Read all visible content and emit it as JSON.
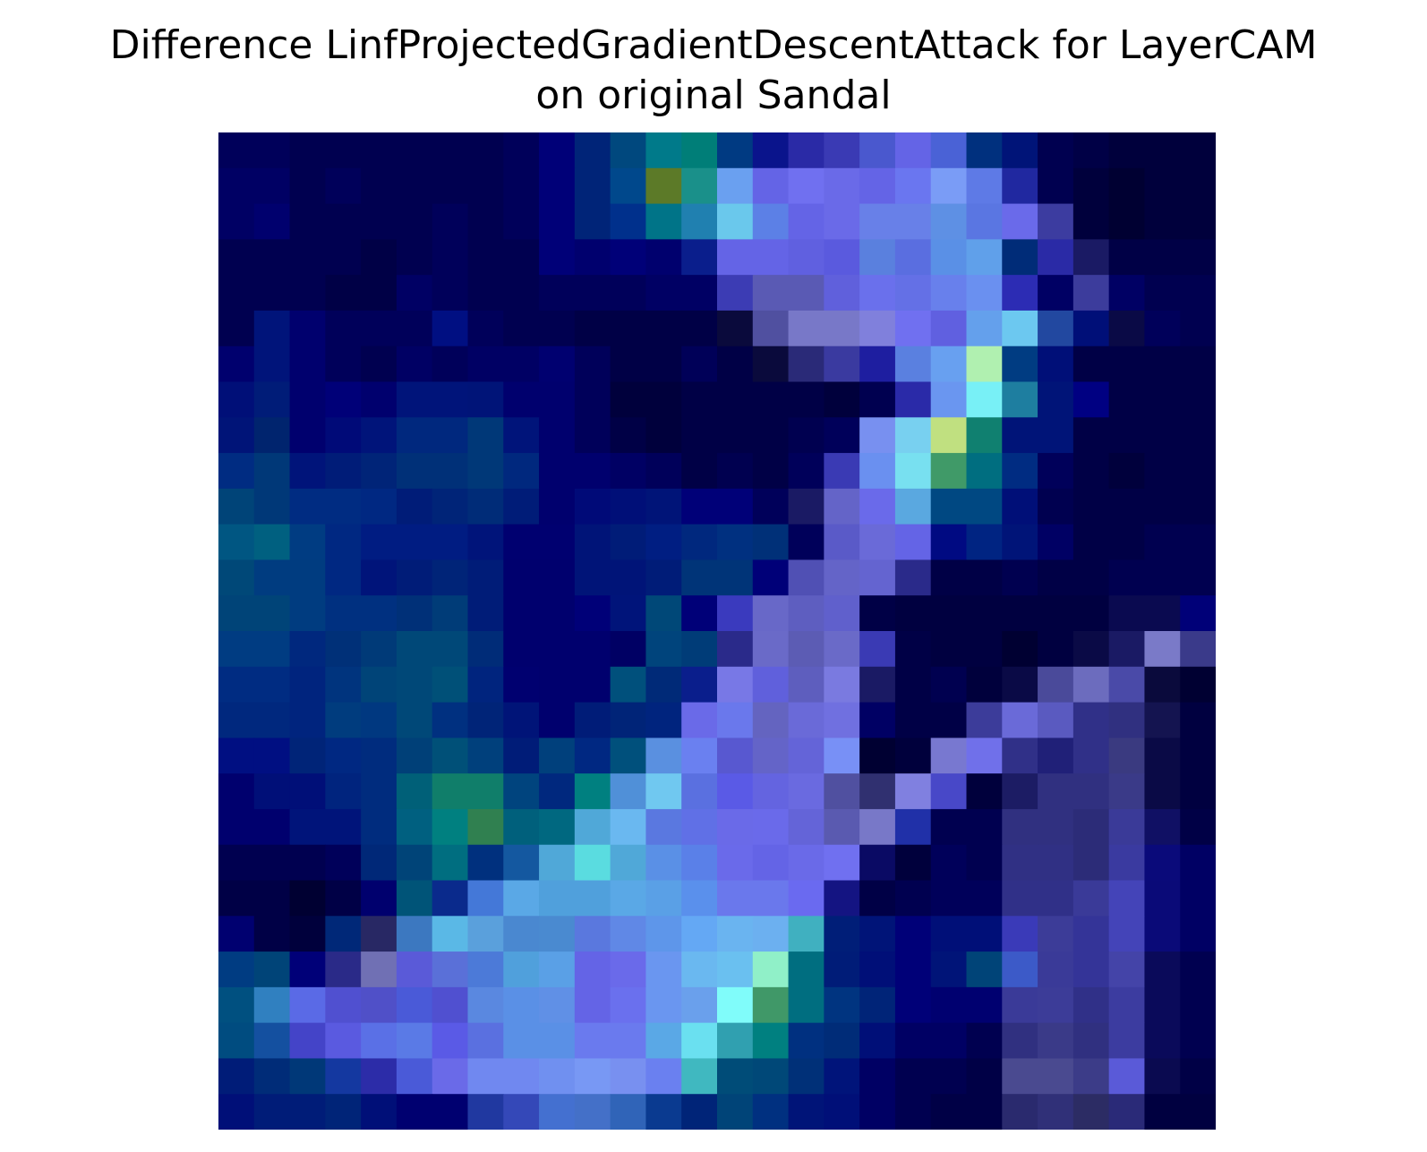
{
  "chart_data": {
    "type": "heatmap",
    "title_line1": "Difference LinfProjectedGradientDescentAttack for LayerCAM",
    "title_line2": "on original Sandal",
    "axes": "off",
    "rows": 28,
    "cols": 28,
    "cells": [
      [
        "#00005a",
        "#00005a",
        "#000050",
        "#000050",
        "#000050",
        "#000050",
        "#000050",
        "#000050",
        "#00005a",
        "#000078",
        "#002478",
        "#00487e",
        "#007a8a",
        "#007e78",
        "#003a82",
        "#0a148c",
        "#2a2aa6",
        "#3a3ab4",
        "#4a58ce",
        "#6464e6",
        "#4a62d6",
        "#00307e",
        "#001478",
        "#000050",
        "#000046",
        "#00003c",
        "#00003c",
        "#00003c"
      ],
      [
        "#000064",
        "#000064",
        "#000050",
        "#00005a",
        "#000050",
        "#000050",
        "#000050",
        "#000050",
        "#00005a",
        "#000078",
        "#002478",
        "#00488c",
        "#5c7a28",
        "#1a908a",
        "#6aa0f0",
        "#6464e6",
        "#7070f0",
        "#6a6ae8",
        "#6464e6",
        "#6a76f0",
        "#7a9cf6",
        "#5e7ae6",
        "#2028a0",
        "#000050",
        "#00003c",
        "#000032",
        "#00003c",
        "#00003c"
      ],
      [
        "#000064",
        "#00006e",
        "#000050",
        "#000050",
        "#000050",
        "#000050",
        "#00005a",
        "#000050",
        "#00005a",
        "#000078",
        "#002478",
        "#00308c",
        "#007488",
        "#2080b0",
        "#6ac8ec",
        "#5c80e6",
        "#6464e6",
        "#6a6ae8",
        "#6880e8",
        "#6880e8",
        "#5e90e4",
        "#5a76e2",
        "#6a6aea",
        "#3c3ca0",
        "#00003c",
        "#000032",
        "#00003c",
        "#00003c"
      ],
      [
        "#000050",
        "#000050",
        "#000050",
        "#000050",
        "#000046",
        "#000050",
        "#00005a",
        "#000050",
        "#000050",
        "#000078",
        "#00006e",
        "#000078",
        "#00006e",
        "#0a1e8c",
        "#6464e6",
        "#6464e6",
        "#6060e0",
        "#5a5ade",
        "#5a80de",
        "#5a6ee0",
        "#5a90e6",
        "#60a0ea",
        "#002c78",
        "#2a2aa6",
        "#1a1a64",
        "#000046",
        "#000046",
        "#000046"
      ],
      [
        "#000050",
        "#000050",
        "#000050",
        "#000046",
        "#000046",
        "#000064",
        "#00005a",
        "#000050",
        "#000050",
        "#00005a",
        "#00005a",
        "#00005a",
        "#000064",
        "#000064",
        "#3c3cb4",
        "#5a5ab4",
        "#5a5ab4",
        "#6060dc",
        "#6a70ec",
        "#6470e6",
        "#6880ec",
        "#6a90f0",
        "#2c2cb4",
        "#000064",
        "#3c3c9c",
        "#000064",
        "#000050",
        "#000050"
      ],
      [
        "#000050",
        "#00147a",
        "#00006e",
        "#00005a",
        "#00005a",
        "#00005a",
        "#000f82",
        "#00005a",
        "#000050",
        "#000050",
        "#000046",
        "#000046",
        "#000046",
        "#000046",
        "#0a0a3c",
        "#5050a0",
        "#7878c8",
        "#7878c8",
        "#8080dc",
        "#7070f0",
        "#6060e0",
        "#64a0ec",
        "#6cc8f0",
        "#2248a0",
        "#000f78",
        "#0a0a46",
        "#00005a",
        "#000050"
      ],
      [
        "#00006e",
        "#00147a",
        "#00006e",
        "#00005a",
        "#000050",
        "#000064",
        "#00005a",
        "#000064",
        "#000064",
        "#000070",
        "#00005a",
        "#000046",
        "#000046",
        "#000058",
        "#000046",
        "#0a0a3c",
        "#2a2a78",
        "#3a3aa0",
        "#1e1ea0",
        "#5a80e0",
        "#68a0f0",
        "#b0f0b0",
        "#003c82",
        "#000f78",
        "#000046",
        "#000046",
        "#000046",
        "#000046"
      ],
      [
        "#000f78",
        "#001c78",
        "#00006e",
        "#000078",
        "#00006e",
        "#00147a",
        "#00147a",
        "#001478",
        "#00006e",
        "#00006e",
        "#00005a",
        "#00003c",
        "#00003c",
        "#000046",
        "#000046",
        "#000046",
        "#000046",
        "#00003c",
        "#000050",
        "#2a2aa8",
        "#6a96f0",
        "#78f0f6",
        "#1e7ea0",
        "#001478",
        "#000082",
        "#000046",
        "#000046",
        "#000046"
      ],
      [
        "#001478",
        "#00246e",
        "#00006e",
        "#000a78",
        "#00147a",
        "#00287e",
        "#00287e",
        "#003878",
        "#00147a",
        "#00006e",
        "#00005a",
        "#000046",
        "#00003c",
        "#000046",
        "#000046",
        "#000046",
        "#000050",
        "#00005a",
        "#7890f0",
        "#78d0f0",
        "#c0e080",
        "#108070",
        "#001478",
        "#001478",
        "#000046",
        "#000046",
        "#000046",
        "#000046"
      ],
      [
        "#002c82",
        "#003878",
        "#00147a",
        "#001c78",
        "#002478",
        "#003078",
        "#003078",
        "#003878",
        "#00287e",
        "#00006e",
        "#00006e",
        "#000064",
        "#00005a",
        "#000046",
        "#000050",
        "#000046",
        "#00005a",
        "#3a3ab4",
        "#6a90f0",
        "#78e0f0",
        "#409a68",
        "#006e80",
        "#002c82",
        "#00005a",
        "#000046",
        "#00003c",
        "#000046",
        "#000046"
      ],
      [
        "#004478",
        "#003878",
        "#002c82",
        "#002c82",
        "#002882",
        "#001c78",
        "#002478",
        "#002c78",
        "#001c78",
        "#00006e",
        "#000a78",
        "#000f78",
        "#001478",
        "#000078",
        "#000078",
        "#00005a",
        "#1a1a64",
        "#6464c8",
        "#6a6aea",
        "#5aa8e0",
        "#004882",
        "#004882",
        "#000f78",
        "#000050",
        "#000046",
        "#000046",
        "#000046",
        "#000046"
      ],
      [
        "#005682",
        "#006080",
        "#003c82",
        "#002882",
        "#001c82",
        "#001c82",
        "#001c82",
        "#00147a",
        "#000070",
        "#000070",
        "#001478",
        "#001c78",
        "#001e82",
        "#00287e",
        "#003080",
        "#003078",
        "#00005a",
        "#5a5ac8",
        "#6a6ad8",
        "#6464e6",
        "#000a82",
        "#002482",
        "#001478",
        "#000064",
        "#000046",
        "#000046",
        "#000050",
        "#000050"
      ],
      [
        "#004878",
        "#003c80",
        "#003c80",
        "#002882",
        "#00147a",
        "#001c78",
        "#002478",
        "#001c78",
        "#00006e",
        "#00006e",
        "#001478",
        "#001478",
        "#001c78",
        "#003478",
        "#003478",
        "#000078",
        "#5050b4",
        "#6464c8",
        "#6464d0",
        "#2a2a8a",
        "#000046",
        "#000046",
        "#000050",
        "#000046",
        "#000046",
        "#000050",
        "#000050",
        "#000050"
      ],
      [
        "#004478",
        "#004478",
        "#003c80",
        "#003080",
        "#003080",
        "#003078",
        "#003c78",
        "#001c78",
        "#00006e",
        "#00006e",
        "#000078",
        "#00147a",
        "#004878",
        "#000078",
        "#3a3abe",
        "#6868c8",
        "#5e5ec0",
        "#6060cc",
        "#000046",
        "#000040",
        "#000040",
        "#000040",
        "#000040",
        "#000040",
        "#000040",
        "#0a0a50",
        "#0a0a50",
        "#000078"
      ],
      [
        "#003c82",
        "#003c82",
        "#00287e",
        "#003078",
        "#003a78",
        "#004878",
        "#004878",
        "#002c78",
        "#00006e",
        "#00006e",
        "#00006e",
        "#000064",
        "#00447c",
        "#003c78",
        "#2a2a8a",
        "#6a6ac8",
        "#5c5cb4",
        "#6a6ac8",
        "#3a3ab4",
        "#000046",
        "#000040",
        "#000040",
        "#000032",
        "#000040",
        "#0a0a46",
        "#1a1a64",
        "#7a7ac8",
        "#3a3a8a"
      ],
      [
        "#002c82",
        "#002c82",
        "#00247e",
        "#00347e",
        "#004478",
        "#004878",
        "#005078",
        "#00247e",
        "#000070",
        "#00006e",
        "#00006e",
        "#00507c",
        "#002a78",
        "#0a1e8c",
        "#7878e6",
        "#6060dc",
        "#5e5ebe",
        "#7a7ae0",
        "#1a1a64",
        "#000046",
        "#000050",
        "#00003c",
        "#0a0a46",
        "#4a4a9a",
        "#6c6cbe",
        "#4a4aa8",
        "#0a0a3c",
        "#000032"
      ],
      [
        "#00287e",
        "#00287e",
        "#00247e",
        "#003c7e",
        "#003880",
        "#004878",
        "#003080",
        "#002478",
        "#001478",
        "#00006e",
        "#001c78",
        "#002478",
        "#00247e",
        "#6a6ae8",
        "#6a78ec",
        "#6464c0",
        "#6a6ad8",
        "#7070e0",
        "#000064",
        "#000046",
        "#000046",
        "#3c3c9a",
        "#6a6ad8",
        "#5a5ac0",
        "#303088",
        "#303080",
        "#141450",
        "#000040"
      ],
      [
        "#000f82",
        "#000f82",
        "#002478",
        "#002882",
        "#002c7e",
        "#004078",
        "#005078",
        "#00407c",
        "#001c78",
        "#00407c",
        "#002882",
        "#00507c",
        "#5a90e0",
        "#6a80f0",
        "#5858d0",
        "#6464c8",
        "#6464d8",
        "#7890f6",
        "#000032",
        "#00003c",
        "#7878d0",
        "#7070ea",
        "#303088",
        "#202078",
        "#303088",
        "#3a3a80",
        "#0a0a46",
        "#000040"
      ],
      [
        "#00006e",
        "#000f78",
        "#000f78",
        "#00247e",
        "#002c7e",
        "#006078",
        "#107e6a",
        "#107e6a",
        "#00447e",
        "#00287e",
        "#008080",
        "#5090d8",
        "#70c8f0",
        "#5a70e0",
        "#5a5ae6",
        "#6464e0",
        "#6a6ae0",
        "#5050a0",
        "#303070",
        "#8080e0",
        "#4848c8",
        "#00003c",
        "#1c1c64",
        "#303080",
        "#303080",
        "#3a3a88",
        "#0a0a46",
        "#000040"
      ],
      [
        "#00006e",
        "#00006e",
        "#00147a",
        "#00147a",
        "#002c7e",
        "#006080",
        "#008080",
        "#308050",
        "#00607c",
        "#006880",
        "#50a8d8",
        "#6ab8f0",
        "#5a78e0",
        "#6070e6",
        "#6a6ae8",
        "#6a6aea",
        "#6464d8",
        "#5a5ab0",
        "#7878c8",
        "#2030a8",
        "#000050",
        "#000050",
        "#303080",
        "#303080",
        "#2c2c78",
        "#3a3a98",
        "#101064",
        "#000046"
      ],
      [
        "#000050",
        "#000050",
        "#000050",
        "#00005a",
        "#002878",
        "#004478",
        "#006e80",
        "#00307e",
        "#1458a0",
        "#50a8d8",
        "#5adce0",
        "#50a8d8",
        "#5a90e6",
        "#5a80e8",
        "#6a6aea",
        "#6464e6",
        "#6a6ae8",
        "#7070f0",
        "#0a0a64",
        "#00003c",
        "#00005a",
        "#000050",
        "#303084",
        "#303084",
        "#2c2c78",
        "#3a3aa0",
        "#0a0a7a",
        "#000064"
      ],
      [
        "#000046",
        "#000046",
        "#000032",
        "#000046",
        "#00006e",
        "#005478",
        "#0a2a8c",
        "#4478d8",
        "#5aa8e6",
        "#50a0dc",
        "#50a0dc",
        "#5aa8e6",
        "#5aa0e6",
        "#5a90ec",
        "#6a78ec",
        "#6a78ec",
        "#6a6af0",
        "#141482",
        "#000046",
        "#000050",
        "#00005a",
        "#00005a",
        "#303088",
        "#303088",
        "#3a3a98",
        "#4444b8",
        "#0a0a78",
        "#000064"
      ],
      [
        "#000070",
        "#000046",
        "#00003c",
        "#002878",
        "#282864",
        "#3c78c0",
        "#5ab8e6",
        "#5aa0dc",
        "#4a88d0",
        "#4a8ad0",
        "#5a78de",
        "#6088e6",
        "#5e96ea",
        "#64a8f4",
        "#6ab4f0",
        "#6cb0f0",
        "#40b0c0",
        "#001e78",
        "#001478",
        "#000078",
        "#000f78",
        "#000f78",
        "#3a3ab8",
        "#3c3c98",
        "#343498",
        "#4444b8",
        "#0a0a78",
        "#000064"
      ],
      [
        "#003c82",
        "#004478",
        "#000078",
        "#2a2a88",
        "#7070b4",
        "#5a5ad8",
        "#5a70d8",
        "#4c7ad8",
        "#50a0dc",
        "#5aa0e6",
        "#6464e6",
        "#6a6aea",
        "#6a96f0",
        "#6ab8f0",
        "#6ac0f0",
        "#90f0c8",
        "#006e80",
        "#001c78",
        "#000f78",
        "#000078",
        "#001478",
        "#004478",
        "#3c5ac8",
        "#3a3a98",
        "#343498",
        "#4444a8",
        "#0a0a5a",
        "#000050"
      ],
      [
        "#005080",
        "#3080c0",
        "#5a6ae6",
        "#5050d0",
        "#5050c8",
        "#4a5ad8",
        "#5050d0",
        "#5a88e0",
        "#5a90e6",
        "#6090e6",
        "#6464e6",
        "#6a70ee",
        "#6a96f0",
        "#6aa0ec",
        "#80fcfa",
        "#409868",
        "#006e80",
        "#003480",
        "#002478",
        "#000078",
        "#000070",
        "#000070",
        "#3a3a98",
        "#3c3c98",
        "#303088",
        "#3c3ca0",
        "#0a0a5a",
        "#000050"
      ],
      [
        "#004c80",
        "#1450a0",
        "#4444c8",
        "#5a5ae0",
        "#5a70e6",
        "#5a7ae6",
        "#5a5ae6",
        "#5a70e0",
        "#5a90e6",
        "#5a90e6",
        "#6a7aee",
        "#6a7aee",
        "#5aa8e6",
        "#6ae0f0",
        "#30a0b0",
        "#008080",
        "#003080",
        "#002c78",
        "#000f78",
        "#000064",
        "#000064",
        "#000050",
        "#303080",
        "#3a3a88",
        "#303080",
        "#3c3ca0",
        "#0a0a5a",
        "#000050"
      ],
      [
        "#001c78",
        "#002c78",
        "#003878",
        "#1438a0",
        "#2c2ca8",
        "#4a5ad8",
        "#6a6ae8",
        "#7088f0",
        "#7088f0",
        "#7090f0",
        "#7898f4",
        "#7890f0",
        "#6a80f0",
        "#40b8c0",
        "#004c78",
        "#004878",
        "#003078",
        "#00147a",
        "#000064",
        "#000050",
        "#000050",
        "#000046",
        "#4a4a90",
        "#4a4a90",
        "#3c3c88",
        "#5a5ad8",
        "#0a0a50",
        "#000046"
      ],
      [
        "#000f78",
        "#001c78",
        "#001c78",
        "#002478",
        "#000f78",
        "#000070",
        "#000070",
        "#2038a0",
        "#3448b8",
        "#4470d0",
        "#4470c8",
        "#3064b8",
        "#0a3a90",
        "#002478",
        "#004478",
        "#003080",
        "#001478",
        "#000f78",
        "#000064",
        "#000050",
        "#000046",
        "#000046",
        "#2a2a6e",
        "#303078",
        "#2c2c64",
        "#2a2a78",
        "#000040",
        "#000040"
      ]
    ]
  }
}
